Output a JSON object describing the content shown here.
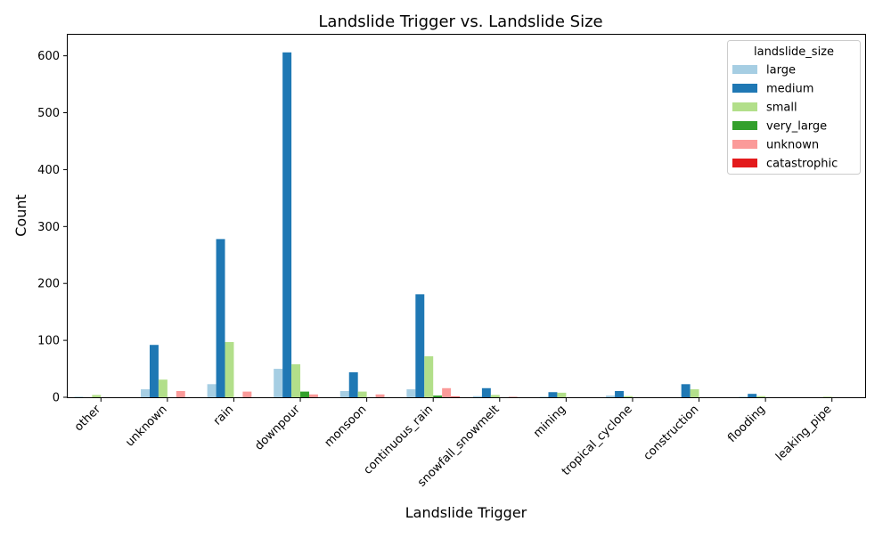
{
  "chart_data": {
    "type": "bar",
    "title": "Landslide Trigger vs. Landslide Size",
    "xlabel": "Landslide Trigger",
    "ylabel": "Count",
    "ylim": [
      0,
      637
    ],
    "yticks": [
      0,
      100,
      200,
      300,
      400,
      500,
      600
    ],
    "grid": false,
    "legend": {
      "title": "landslide_size",
      "placement": "top-right"
    },
    "categories": [
      "other",
      "unknown",
      "rain",
      "downpour",
      "monsoon",
      "continuous_rain",
      "snowfall_snowmelt",
      "mining",
      "tropical_cyclone",
      "construction",
      "flooding",
      "leaking_pipe"
    ],
    "series": [
      {
        "name": "large",
        "color": "#a6cee3",
        "values": [
          1,
          14,
          23,
          50,
          11,
          14,
          2,
          1,
          3,
          0,
          1,
          0
        ]
      },
      {
        "name": "medium",
        "color": "#1f78b4",
        "values": [
          0,
          92,
          278,
          606,
          44,
          181,
          16,
          9,
          11,
          23,
          6,
          0
        ]
      },
      {
        "name": "small",
        "color": "#b2df8a",
        "values": [
          4,
          31,
          97,
          58,
          10,
          72,
          4,
          8,
          2,
          14,
          2,
          1
        ]
      },
      {
        "name": "very_large",
        "color": "#33a02c",
        "values": [
          0,
          0,
          0,
          10,
          0,
          3,
          0,
          0,
          0,
          0,
          0,
          0
        ]
      },
      {
        "name": "unknown",
        "color": "#fb9a99",
        "values": [
          0,
          11,
          10,
          5,
          5,
          16,
          1,
          0,
          0,
          0,
          0,
          0
        ]
      },
      {
        "name": "catastrophic",
        "color": "#e31a1c",
        "values": [
          0,
          0,
          0,
          0,
          0,
          1,
          0,
          0,
          0,
          0,
          0,
          0
        ]
      }
    ]
  }
}
